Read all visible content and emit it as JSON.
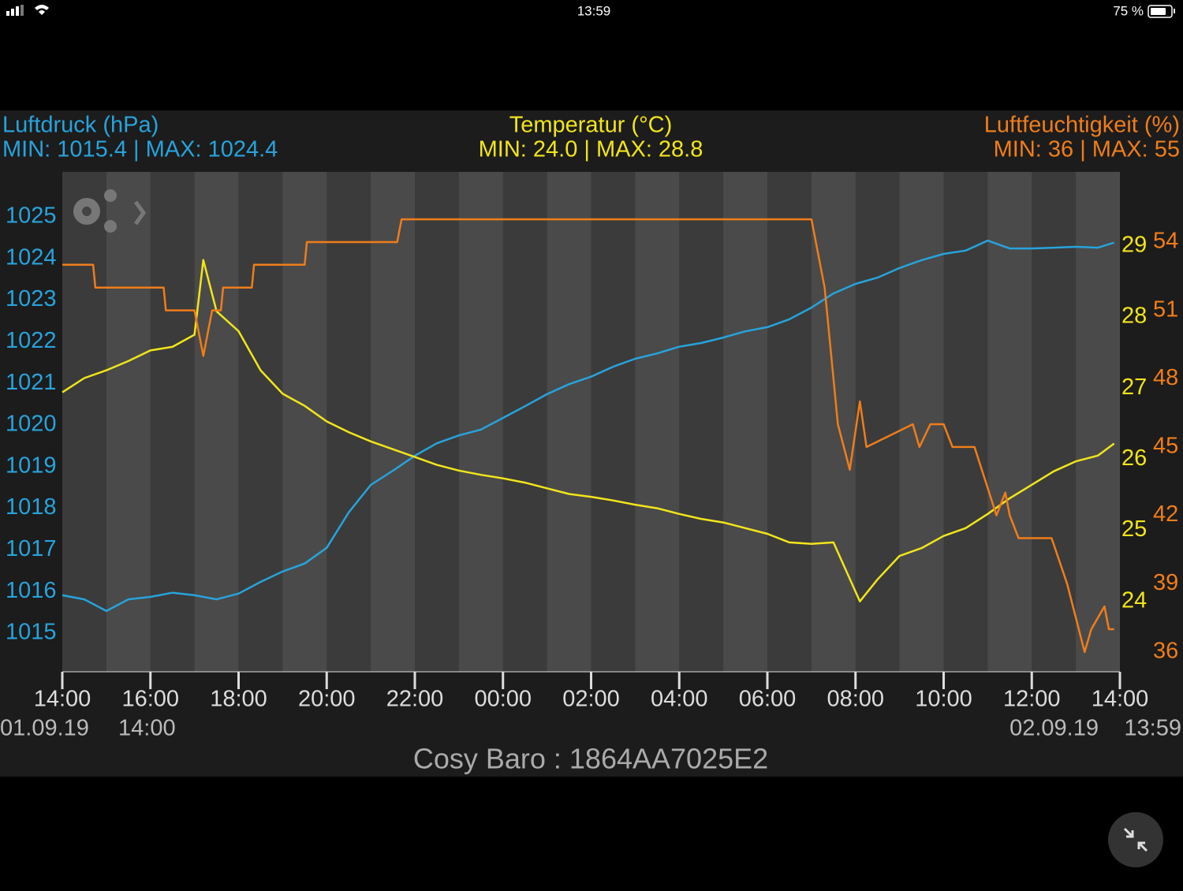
{
  "status_bar": {
    "time": "13:59",
    "battery": "75 %"
  },
  "chart_data": {
    "type": "line",
    "footer_title": "Cosy Baro : 1864AA7025E2",
    "xlim": [
      0,
      24
    ],
    "xticks": [
      {
        "value": 0,
        "label": "14:00"
      },
      {
        "value": 2,
        "label": "16:00"
      },
      {
        "value": 4,
        "label": "18:00"
      },
      {
        "value": 6,
        "label": "20:00"
      },
      {
        "value": 8,
        "label": "22:00"
      },
      {
        "value": 10,
        "label": "00:00"
      },
      {
        "value": 12,
        "label": "02:00"
      },
      {
        "value": 14,
        "label": "04:00"
      },
      {
        "value": 16,
        "label": "06:00"
      },
      {
        "value": 18,
        "label": "08:00"
      },
      {
        "value": 20,
        "label": "10:00"
      },
      {
        "value": 22,
        "label": "12:00"
      },
      {
        "value": 24,
        "label": "14:00"
      }
    ],
    "annotations": [
      "01.09.19",
      "14:00",
      "02.09.19",
      "13:59"
    ],
    "ylim": [
      1014.07,
      1026.08
    ],
    "yticks": [
      1015,
      1016,
      1017,
      1018,
      1019,
      1020,
      1021,
      1022,
      1023,
      1024,
      1025
    ],
    "y2lim": [
      23.01,
      30.04
    ],
    "y2ticks": [
      24,
      25,
      26,
      27,
      28,
      29
    ],
    "y3lim": [
      35.13,
      57.08
    ],
    "y3ticks": [
      36,
      39,
      42,
      45,
      48,
      51,
      54
    ],
    "series": [
      {
        "name": "Luftdruck (hPa)",
        "summary": "MIN: 1015.4 | MAX: 1024.4",
        "color": "#27a3dc",
        "axis": "y",
        "x": [
          0,
          0.5,
          1,
          1.5,
          2,
          2.5,
          3,
          3.5,
          4,
          4.5,
          5,
          5.5,
          6,
          6.5,
          7,
          7.5,
          8,
          8.5,
          9,
          9.5,
          10,
          10.5,
          11,
          11.5,
          12,
          12.5,
          13,
          13.5,
          14,
          14.5,
          15,
          15.5,
          16,
          16.5,
          17,
          17.5,
          18,
          18.5,
          19,
          19.5,
          20,
          20.5,
          21,
          21.5,
          22,
          22.5,
          23,
          23.5,
          23.87
        ],
        "values": [
          1015.91,
          1015.81,
          1015.53,
          1015.81,
          1015.87,
          1015.97,
          1015.91,
          1015.81,
          1015.95,
          1016.23,
          1016.48,
          1016.67,
          1017.05,
          1017.9,
          1018.56,
          1018.9,
          1019.26,
          1019.56,
          1019.75,
          1019.89,
          1020.17,
          1020.45,
          1020.74,
          1020.98,
          1021.16,
          1021.4,
          1021.59,
          1021.72,
          1021.88,
          1021.97,
          1022.1,
          1022.25,
          1022.35,
          1022.54,
          1022.82,
          1023.16,
          1023.39,
          1023.54,
          1023.77,
          1023.96,
          1024.11,
          1024.19,
          1024.43,
          1024.24,
          1024.24,
          1024.26,
          1024.28,
          1024.26,
          1024.38
        ]
      },
      {
        "name": "Temperatur (°C)",
        "summary": "MIN: 24.0 | MAX: 28.8",
        "color": "#f2e51a",
        "axis": "y2",
        "x": [
          0,
          0.5,
          1,
          1.5,
          2,
          2.5,
          3,
          3.2,
          3.5,
          4,
          4.5,
          5,
          5.5,
          6,
          6.5,
          7,
          7.5,
          8,
          8.5,
          9,
          9.5,
          10,
          10.5,
          11,
          11.5,
          12,
          12.5,
          13,
          13.5,
          14,
          14.5,
          15,
          15.5,
          16,
          16.5,
          17,
          17.5,
          18.1,
          18.5,
          19,
          19.5,
          20,
          20.5,
          21,
          21.5,
          22,
          22.5,
          23,
          23.5,
          23.87
        ],
        "values": [
          26.94,
          27.14,
          27.25,
          27.38,
          27.53,
          27.58,
          27.75,
          28.8,
          28.08,
          27.8,
          27.25,
          26.92,
          26.75,
          26.53,
          26.38,
          26.25,
          26.14,
          26.03,
          25.92,
          25.84,
          25.78,
          25.73,
          25.67,
          25.59,
          25.51,
          25.47,
          25.42,
          25.36,
          25.31,
          25.23,
          25.16,
          25.11,
          25.03,
          24.95,
          24.83,
          24.81,
          24.83,
          24.0,
          24.31,
          24.64,
          24.75,
          24.92,
          25.03,
          25.23,
          25.45,
          25.64,
          25.83,
          25.97,
          26.05,
          26.22
        ]
      },
      {
        "name": "Luftfeuchtigkeit (%)",
        "summary": "MIN: 36 | MAX: 55",
        "color": "#f07d1a",
        "axis": "y3",
        "x": [
          0,
          0.7,
          0.75,
          2.3,
          2.35,
          3.0,
          3.2,
          3.4,
          3.6,
          3.65,
          4.3,
          4.35,
          5.5,
          5.55,
          7.6,
          7.7,
          17.0,
          17.3,
          17.6,
          17.87,
          18.1,
          18.25,
          19.3,
          19.45,
          19.7,
          20.0,
          20.2,
          20.7,
          21.2,
          21.4,
          21.5,
          21.7,
          22.45,
          22.8,
          23.2,
          23.35,
          23.65,
          23.75,
          23.87
        ],
        "values": [
          53,
          53,
          52,
          52,
          51,
          51,
          49,
          51,
          51,
          52,
          52,
          53,
          53,
          54,
          54,
          55,
          55,
          52,
          46,
          44,
          47,
          45,
          46,
          45,
          46,
          46,
          45,
          45,
          42,
          43,
          42,
          41,
          41,
          39,
          36,
          37,
          38,
          37,
          37
        ]
      }
    ]
  }
}
